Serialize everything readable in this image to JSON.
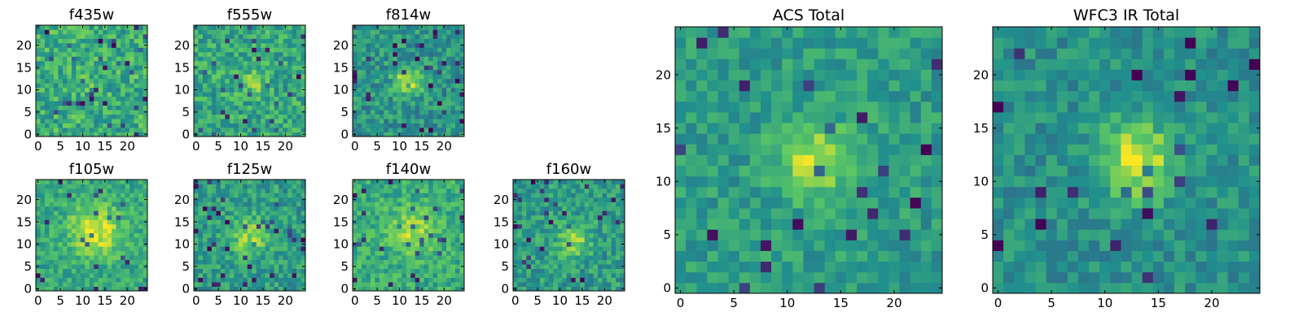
{
  "figure": {
    "colormap": "viridis",
    "colormap_stops": [
      "#440154",
      "#3b528b",
      "#21908d",
      "#5dc963",
      "#fde725"
    ],
    "background": "#ffffff"
  },
  "chart_data": [
    {
      "id": "f435w",
      "type": "heatmap",
      "title": "f435w",
      "nx": 25,
      "ny": 25,
      "xlim": [
        0,
        24
      ],
      "ylim": [
        0,
        24
      ],
      "xticks": [
        0,
        5,
        10,
        15,
        20
      ],
      "yticks": [
        0,
        5,
        10,
        15,
        20
      ],
      "signal": {
        "peak_x": 12.0,
        "peak_y": 12.0,
        "amplitude": 0.05,
        "width": 3.0
      },
      "noise": 0.18,
      "baseline": 0.62,
      "seed": 11
    },
    {
      "id": "f555w",
      "type": "heatmap",
      "title": "f555w",
      "nx": 25,
      "ny": 25,
      "xlim": [
        0,
        24
      ],
      "ylim": [
        0,
        24
      ],
      "xticks": [
        0,
        5,
        10,
        15,
        20
      ],
      "yticks": [
        0,
        5,
        10,
        15,
        20
      ],
      "signal": {
        "peak_x": 13.0,
        "peak_y": 12.0,
        "amplitude": 0.2,
        "width": 2.0
      },
      "noise": 0.17,
      "baseline": 0.6,
      "seed": 23
    },
    {
      "id": "f814w",
      "type": "heatmap",
      "title": "f814w",
      "nx": 25,
      "ny": 25,
      "xlim": [
        0,
        24
      ],
      "ylim": [
        0,
        24
      ],
      "xticks": [
        0,
        5,
        10,
        15,
        20
      ],
      "yticks": [
        0,
        5,
        10,
        15,
        20
      ],
      "signal": {
        "peak_x": 12.0,
        "peak_y": 12.0,
        "amplitude": 0.4,
        "width": 2.2
      },
      "noise": 0.16,
      "baseline": 0.52,
      "seed": 37
    },
    {
      "id": "f105w",
      "type": "heatmap",
      "title": "f105w",
      "nx": 25,
      "ny": 25,
      "xlim": [
        0,
        24
      ],
      "ylim": [
        0,
        24
      ],
      "xticks": [
        0,
        5,
        10,
        15,
        20
      ],
      "yticks": [
        0,
        5,
        10,
        15,
        20
      ],
      "signal": {
        "peak_x": 13.0,
        "peak_y": 13.0,
        "amplitude": 0.35,
        "width": 4.0
      },
      "noise": 0.13,
      "baseline": 0.6,
      "seed": 41
    },
    {
      "id": "f125w",
      "type": "heatmap",
      "title": "f125w",
      "nx": 25,
      "ny": 25,
      "xlim": [
        0,
        24
      ],
      "ylim": [
        0,
        24
      ],
      "xticks": [
        0,
        5,
        10,
        15,
        20
      ],
      "yticks": [
        0,
        5,
        10,
        15,
        20
      ],
      "signal": {
        "peak_x": 12.0,
        "peak_y": 12.0,
        "amplitude": 0.3,
        "width": 3.0
      },
      "noise": 0.15,
      "baseline": 0.55,
      "seed": 53
    },
    {
      "id": "f140w",
      "type": "heatmap",
      "title": "f140w",
      "nx": 25,
      "ny": 25,
      "xlim": [
        0,
        24
      ],
      "ylim": [
        0,
        24
      ],
      "xticks": [
        0,
        5,
        10,
        15,
        20
      ],
      "yticks": [
        0,
        5,
        10,
        15,
        20
      ],
      "signal": {
        "peak_x": 13.0,
        "peak_y": 13.0,
        "amplitude": 0.25,
        "width": 3.5
      },
      "noise": 0.14,
      "baseline": 0.62,
      "seed": 67
    },
    {
      "id": "f160w",
      "type": "heatmap",
      "title": "f160w",
      "nx": 25,
      "ny": 25,
      "xlim": [
        0,
        24
      ],
      "ylim": [
        0,
        24
      ],
      "xticks": [
        0,
        5,
        10,
        15,
        20
      ],
      "yticks": [
        0,
        5,
        10,
        15,
        20
      ],
      "signal": {
        "peak_x": 13.0,
        "peak_y": 11.0,
        "amplitude": 0.3,
        "width": 2.5
      },
      "noise": 0.15,
      "baseline": 0.55,
      "seed": 79
    },
    {
      "id": "acs_total",
      "type": "heatmap",
      "title": "ACS Total",
      "nx": 25,
      "ny": 25,
      "xlim": [
        0,
        24
      ],
      "ylim": [
        0,
        24
      ],
      "xticks": [
        0,
        5,
        10,
        15,
        20
      ],
      "yticks": [
        0,
        5,
        10,
        15,
        20
      ],
      "signal": {
        "peak_x": 12.5,
        "peak_y": 12.0,
        "amplitude": 0.35,
        "width": 2.5
      },
      "noise": 0.12,
      "baseline": 0.55,
      "seed": 97
    },
    {
      "id": "wfc3_ir_total",
      "type": "heatmap",
      "title": "WFC3 IR Total",
      "nx": 25,
      "ny": 25,
      "xlim": [
        0,
        24
      ],
      "ylim": [
        0,
        24
      ],
      "xticks": [
        0,
        5,
        10,
        15,
        20
      ],
      "yticks": [
        0,
        5,
        10,
        15,
        20
      ],
      "signal": {
        "peak_x": 13.0,
        "peak_y": 12.0,
        "amplitude": 0.45,
        "width": 2.5
      },
      "noise": 0.12,
      "baseline": 0.5,
      "seed": 113
    }
  ]
}
